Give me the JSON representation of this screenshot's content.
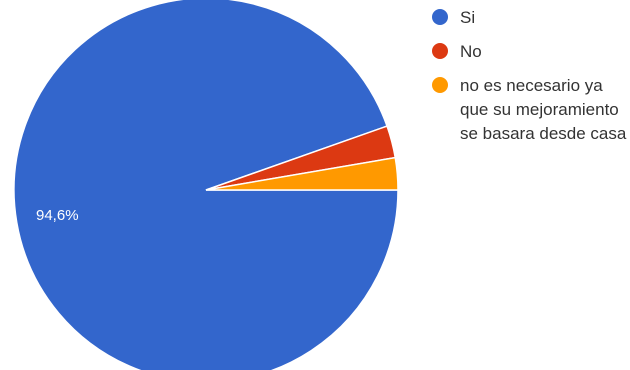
{
  "chart_data": {
    "type": "pie",
    "categories": [
      "Si",
      "No",
      "no es necesario ya que su mejoramiento se basara desde casa"
    ],
    "values": [
      94.6,
      2.7,
      2.7
    ],
    "slice_labels": [
      "94,6%",
      "",
      ""
    ],
    "colors": [
      "#3366cc",
      "#dc3912",
      "#ff9900"
    ],
    "legend_position": "right"
  }
}
